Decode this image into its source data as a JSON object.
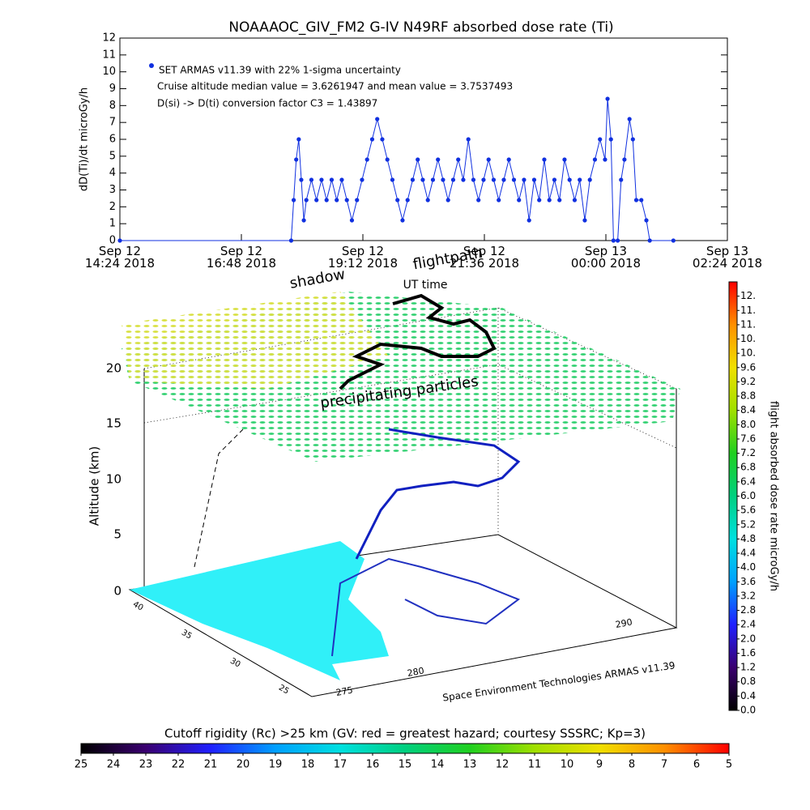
{
  "chart_data": [
    {
      "type": "line",
      "title": "NOAAAOC_GIV_FM2 G-IV    N49RF  absorbed dose rate (Ti)",
      "y_label": "dD(Ti)/dt microGy/h",
      "annotations": [
        "Cruise altitude median value = 3.6261947 and mean value = 3.7537493",
        "D(si) -> D(ti) conversion factor C3 = 1.43897"
      ],
      "x": [
        "2018-09-12 14:24",
        "2018-09-12 17:47",
        "2018-09-12 17:50",
        "2018-09-12 17:53",
        "2018-09-12 17:56",
        "2018-09-12 17:59",
        "2018-09-12 18:02",
        "2018-09-12 18:05",
        "2018-09-12 18:11",
        "2018-09-12 18:17",
        "2018-09-12 18:23",
        "2018-09-12 18:29",
        "2018-09-12 18:35",
        "2018-09-12 18:41",
        "2018-09-12 18:47",
        "2018-09-12 18:53",
        "2018-09-12 18:59",
        "2018-09-12 19:05",
        "2018-09-12 19:11",
        "2018-09-12 19:17",
        "2018-09-12 19:23",
        "2018-09-12 19:29",
        "2018-09-12 19:35",
        "2018-09-12 19:41",
        "2018-09-12 19:47",
        "2018-09-12 19:53",
        "2018-09-12 19:59",
        "2018-09-12 20:05",
        "2018-09-12 20:11",
        "2018-09-12 20:17",
        "2018-09-12 20:23",
        "2018-09-12 20:29",
        "2018-09-12 20:35",
        "2018-09-12 20:41",
        "2018-09-12 20:47",
        "2018-09-12 20:53",
        "2018-09-12 20:59",
        "2018-09-12 21:05",
        "2018-09-12 21:11",
        "2018-09-12 21:17",
        "2018-09-12 21:23",
        "2018-09-12 21:29",
        "2018-09-12 21:35",
        "2018-09-12 21:41",
        "2018-09-12 21:47",
        "2018-09-12 21:53",
        "2018-09-12 21:59",
        "2018-09-12 22:05",
        "2018-09-12 22:11",
        "2018-09-12 22:17",
        "2018-09-12 22:23",
        "2018-09-12 22:29",
        "2018-09-12 22:35",
        "2018-09-12 22:41",
        "2018-09-12 22:47",
        "2018-09-12 22:53",
        "2018-09-12 22:59",
        "2018-09-12 23:05",
        "2018-09-12 23:11",
        "2018-09-12 23:17",
        "2018-09-12 23:23",
        "2018-09-12 23:29",
        "2018-09-12 23:35",
        "2018-09-12 23:41",
        "2018-09-12 23:47",
        "2018-09-12 23:53",
        "2018-09-12 23:59",
        "2018-09-13 00:02",
        "2018-09-13 00:06",
        "2018-09-13 00:09",
        "2018-09-13 00:14",
        "2018-09-13 00:18",
        "2018-09-13 00:22",
        "2018-09-13 00:28",
        "2018-09-13 00:32",
        "2018-09-13 00:36",
        "2018-09-13 00:42",
        "2018-09-13 00:48",
        "2018-09-13 00:52",
        "2018-09-13 01:20"
      ],
      "series": [
        {
          "name": "SET ARMAS v11.39 with 22% 1-sigma uncertainty",
          "color": "#1030e0",
          "values": [
            0,
            0,
            2.4,
            4.8,
            6,
            3.6,
            1.2,
            2.4,
            3.6,
            2.4,
            3.6,
            2.4,
            3.6,
            2.4,
            3.6,
            2.4,
            1.2,
            2.4,
            3.6,
            4.8,
            6,
            7.2,
            6,
            4.8,
            3.6,
            2.4,
            1.2,
            2.4,
            3.6,
            4.8,
            3.6,
            2.4,
            3.6,
            4.8,
            3.6,
            2.4,
            3.6,
            4.8,
            3.6,
            6,
            3.6,
            2.4,
            3.6,
            4.8,
            3.6,
            2.4,
            3.6,
            4.8,
            3.6,
            2.4,
            3.6,
            1.2,
            3.6,
            2.4,
            4.8,
            2.4,
            3.6,
            2.4,
            4.8,
            3.6,
            2.4,
            3.6,
            1.2,
            3.6,
            4.8,
            6,
            4.8,
            8.4,
            6,
            0,
            0,
            3.6,
            4.8,
            7.2,
            6,
            2.4,
            2.4,
            1.2,
            0,
            0
          ]
        }
      ],
      "xlim": [
        "2018-09-12 14:24",
        "2018-09-13 02:24"
      ],
      "xticks": [
        {
          "value": "2018-09-12 14:24",
          "label": "Sep 12\n14:24 2018"
        },
        {
          "value": "2018-09-12 16:48",
          "label": "Sep 12\n16:48 2018"
        },
        {
          "value": "2018-09-12 19:12",
          "label": "Sep 12\n19:12 2018"
        },
        {
          "value": "2018-09-12 21:36",
          "label": "Sep 12\n21:36 2018"
        },
        {
          "value": "2018-09-13 00:00",
          "label": "Sep 13\n00:00 2018"
        },
        {
          "value": "2018-09-13 02:24",
          "label": "Sep 13\n02:24 2018"
        }
      ],
      "ylim": [
        0,
        12
      ],
      "yticks": [
        0,
        1,
        2,
        3,
        4,
        5,
        6,
        7,
        8,
        9,
        10,
        11,
        12
      ]
    },
    {
      "type": "colorbar",
      "orientation": "vertical",
      "label": "flight absorbed dose rate microGy/h",
      "lim": [
        0,
        12
      ],
      "colormap": [
        "#000000",
        "#3a0070",
        "#2020ff",
        "#00a0ff",
        "#00e0e0",
        "#00d080",
        "#20d020",
        "#a0e000",
        "#f0e000",
        "#ff9000",
        "#ff0000"
      ],
      "ticks": [
        {
          "value": 0,
          "label": "0.0"
        },
        {
          "value": 0.4,
          "label": "0.4"
        },
        {
          "value": 0.8,
          "label": "0.8"
        },
        {
          "value": 1.2,
          "label": "1.2"
        },
        {
          "value": 1.6,
          "label": "1.6"
        },
        {
          "value": 2,
          "label": "2.0"
        },
        {
          "value": 2.4,
          "label": "2.4"
        },
        {
          "value": 2.8,
          "label": "2.8"
        },
        {
          "value": 3.2,
          "label": "3.2"
        },
        {
          "value": 3.6,
          "label": "3.6"
        },
        {
          "value": 4,
          "label": "4.0"
        },
        {
          "value": 4.4,
          "label": "4.4"
        },
        {
          "value": 4.8,
          "label": "4.8"
        },
        {
          "value": 5.2,
          "label": "5.2"
        },
        {
          "value": 5.6,
          "label": "5.6"
        },
        {
          "value": 6,
          "label": "6.0"
        },
        {
          "value": 6.4,
          "label": "6.4"
        },
        {
          "value": 6.8,
          "label": "6.8"
        },
        {
          "value": 7.2,
          "label": "7.2"
        },
        {
          "value": 7.6,
          "label": "7.6"
        },
        {
          "value": 8,
          "label": "8.0"
        },
        {
          "value": 8.4,
          "label": "8.4"
        },
        {
          "value": 8.8,
          "label": "8.8"
        },
        {
          "value": 9.2,
          "label": "9.2"
        },
        {
          "value": 9.6,
          "label": "9.6"
        },
        {
          "value": 10,
          "label": "10."
        },
        {
          "value": 10.4,
          "label": "10."
        },
        {
          "value": 10.8,
          "label": "11."
        },
        {
          "value": 11.2,
          "label": "11."
        },
        {
          "value": 11.6,
          "label": "12."
        }
      ]
    },
    {
      "type": "colorbar",
      "orientation": "horizontal",
      "label": "Cutoff rigidity (Rc) >25 km (GV: red = greatest hazard; courtesy SSSRC; Kp=3)",
      "lim": [
        25,
        5
      ],
      "colormap": [
        "#000000",
        "#3a0070",
        "#2020ff",
        "#00a0ff",
        "#00e0e0",
        "#00d080",
        "#20d020",
        "#a0e000",
        "#f0e000",
        "#ff9000",
        "#ff0000"
      ],
      "ticks": [
        25,
        24,
        23,
        22,
        21,
        20,
        19,
        18,
        17,
        16,
        15,
        14,
        13,
        12,
        11,
        10,
        9,
        8,
        7,
        6,
        5
      ]
    }
  ],
  "scene": {
    "labels": [
      "shadow",
      "flightpath",
      "UT time",
      "precipitating particles"
    ],
    "z_label": "Altitude (km)",
    "zticks": [
      0,
      5,
      10,
      15,
      20
    ],
    "lat_ticks": [
      25,
      30,
      35,
      40
    ],
    "lon_ticks": [
      275,
      280,
      290
    ],
    "credit": "Space Environment Technologies ARMAS v11.39"
  }
}
